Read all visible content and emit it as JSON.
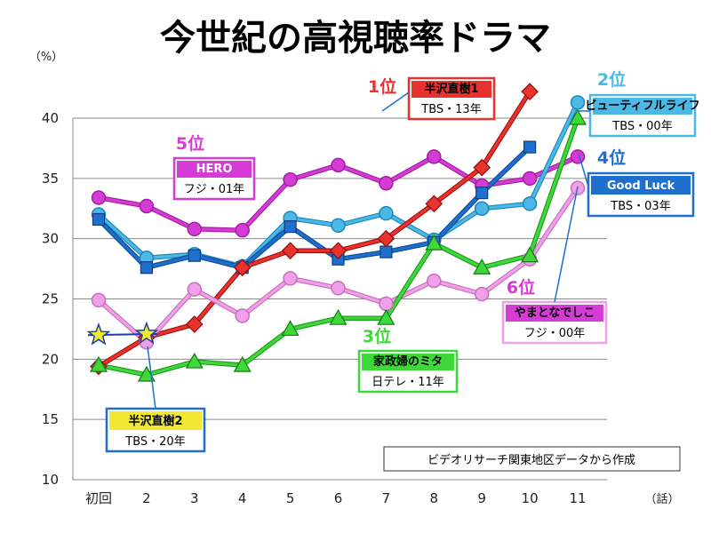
{
  "title": "今世紀の高視聴率ドラマ",
  "source_note": "ビデオリサーチ関東地区データから作成",
  "colors": {
    "hanzawa1": "#e8322d",
    "beautiful": "#4bb8e6",
    "goodluck": "#1f6fce",
    "hero": "#d63bd6",
    "yamato": "#f0a0e8",
    "kaseifu": "#3ed83a",
    "hanzawa2": "#f0e832"
  },
  "chart_data": {
    "type": "line",
    "title": "今世紀の高視聴率ドラマ",
    "xlabel": "（話）",
    "ylabel": "（%）",
    "ylim": [
      10,
      40
    ],
    "yticks": [
      10,
      15,
      20,
      25,
      30,
      35,
      40
    ],
    "grid": true,
    "categories": [
      "初回",
      "2",
      "3",
      "4",
      "5",
      "6",
      "7",
      "8",
      "9",
      "10",
      "11"
    ],
    "series": [
      {
        "key": "hero",
        "name": "HERO",
        "sub": "フジ・01年",
        "rank": "5位",
        "values": [
          33.4,
          32.7,
          30.8,
          30.7,
          34.9,
          36.1,
          34.6,
          36.8,
          34.4,
          35.0,
          36.8
        ]
      },
      {
        "key": "beautiful",
        "name": "ビューティフルライフ",
        "sub": "TBS・00年",
        "rank": "2位",
        "values": [
          32.0,
          28.4,
          28.7,
          27.7,
          31.7,
          31.1,
          32.1,
          29.9,
          32.5,
          32.9,
          41.3
        ]
      },
      {
        "key": "goodluck",
        "name": "Good Luck",
        "sub": "TBS・03年",
        "rank": "4位",
        "values": [
          31.6,
          27.6,
          28.6,
          27.6,
          31.0,
          28.3,
          28.9,
          29.7,
          33.8,
          37.6,
          null
        ]
      },
      {
        "key": "hanzawa1",
        "name": "半沢直樹1",
        "sub": "TBS・13年",
        "rank": "1位",
        "values": [
          19.4,
          21.8,
          22.9,
          27.6,
          29.0,
          29.0,
          30.0,
          32.9,
          35.9,
          42.2,
          null
        ]
      },
      {
        "key": "yamato",
        "name": "やまとなでしこ",
        "sub": "フジ・00年",
        "rank": "6位",
        "values": [
          24.9,
          21.4,
          25.8,
          23.6,
          26.7,
          25.9,
          24.6,
          26.5,
          25.4,
          28.3,
          34.2
        ]
      },
      {
        "key": "kaseifu",
        "name": "家政婦のミタ",
        "sub": "日テレ・11年",
        "rank": "3位",
        "values": [
          19.5,
          18.7,
          19.8,
          19.5,
          22.5,
          23.4,
          23.4,
          29.6,
          27.6,
          28.6,
          40.0
        ]
      },
      {
        "key": "hanzawa2",
        "name": "半沢直樹2",
        "sub": "TBS・20年",
        "rank": "",
        "values": [
          22.0,
          22.1,
          null,
          null,
          null,
          null,
          null,
          null,
          null,
          null,
          null
        ]
      }
    ]
  }
}
